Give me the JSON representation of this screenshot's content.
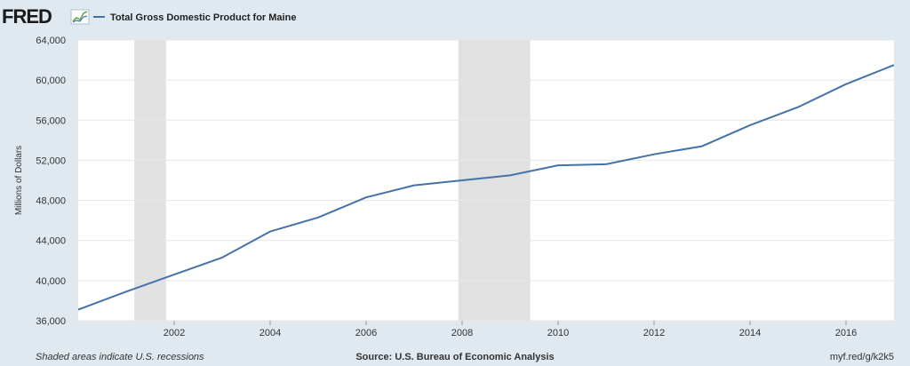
{
  "header": {
    "logo_text": "FRED",
    "legend_label": "Total Gross Domestic Product for Maine"
  },
  "footer": {
    "left": "Shaded areas indicate U.S. recessions",
    "center": "Source: U.S. Bureau of Economic Analysis",
    "right": "myf.red/g/k2k5"
  },
  "colors": {
    "line": "#4572a7",
    "recession": "#e1e1e1",
    "plot_bg": "#ffffff",
    "page_bg": "#e1e9f0",
    "grid": "#e6e6e6"
  },
  "chart_data": {
    "type": "line",
    "ylabel": "Millions of Dollars",
    "xlim": [
      2000,
      2017
    ],
    "ylim": [
      36000,
      64000
    ],
    "yticks": [
      36000,
      40000,
      44000,
      48000,
      52000,
      56000,
      60000,
      64000
    ],
    "ytick_labels": [
      "36,000",
      "40,000",
      "44,000",
      "48,000",
      "52,000",
      "56,000",
      "60,000",
      "64,000"
    ],
    "xticks": [
      2002,
      2004,
      2006,
      2008,
      2010,
      2012,
      2014,
      2016
    ],
    "xtick_labels": [
      "2002",
      "2004",
      "2006",
      "2008",
      "2010",
      "2012",
      "2014",
      "2016"
    ],
    "grid": true,
    "legend_placement": "top-left",
    "recessions": [
      {
        "start": 2001.17,
        "end": 2001.83
      },
      {
        "start": 2007.92,
        "end": 2009.42
      }
    ],
    "series": [
      {
        "name": "Total Gross Domestic Product for Maine",
        "x": [
          2000,
          2001,
          2002,
          2003,
          2004,
          2005,
          2006,
          2007,
          2008,
          2009,
          2010,
          2011,
          2012,
          2013,
          2014,
          2015,
          2016,
          2017
        ],
        "values": [
          37100,
          38900,
          40600,
          42300,
          44900,
          46300,
          48300,
          49500,
          50000,
          50500,
          51500,
          51600,
          52600,
          53400,
          55500,
          57300,
          59600,
          61500
        ]
      }
    ]
  }
}
